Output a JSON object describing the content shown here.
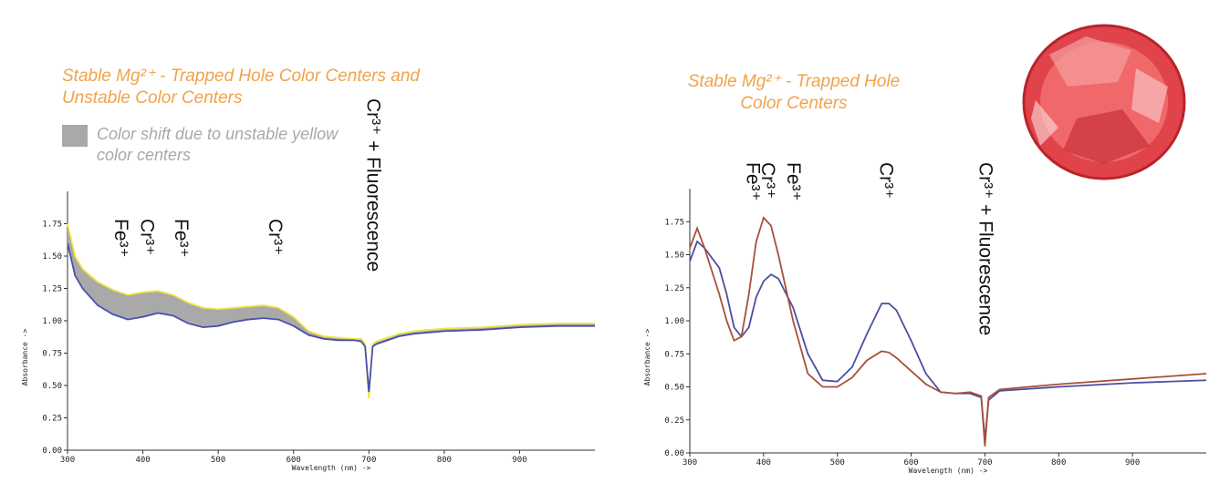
{
  "chart_data": [
    {
      "type": "line",
      "title": "Stable Mg²⁺ - Trapped Hole Color Centers and Unstable Color Centers",
      "x_label": "Wavelength (nm) ->",
      "y_label": "Absorbance ->",
      "band": {
        "label": "Color shift due to unstable yellow color centers",
        "color": "#a9a9a9"
      },
      "x": [
        300,
        310,
        320,
        340,
        360,
        380,
        400,
        420,
        440,
        460,
        480,
        500,
        520,
        540,
        560,
        580,
        600,
        620,
        640,
        660,
        680,
        690,
        695,
        700,
        705,
        710,
        720,
        740,
        760,
        800,
        850,
        900,
        950,
        1000
      ],
      "series": [
        {
          "color": "#f0e640",
          "values": [
            1.75,
            1.5,
            1.4,
            1.3,
            1.24,
            1.2,
            1.22,
            1.23,
            1.2,
            1.14,
            1.1,
            1.09,
            1.1,
            1.11,
            1.12,
            1.1,
            1.03,
            0.92,
            0.88,
            0.87,
            0.86,
            0.86,
            0.82,
            0.4,
            0.82,
            0.84,
            0.86,
            0.9,
            0.92,
            0.94,
            0.95,
            0.97,
            0.98,
            0.98
          ]
        },
        {
          "color": "#4a4fb0",
          "values": [
            1.6,
            1.35,
            1.25,
            1.12,
            1.05,
            1.01,
            1.03,
            1.06,
            1.04,
            0.98,
            0.95,
            0.96,
            0.99,
            1.01,
            1.02,
            1.01,
            0.96,
            0.89,
            0.86,
            0.85,
            0.85,
            0.84,
            0.8,
            0.45,
            0.8,
            0.82,
            0.84,
            0.88,
            0.9,
            0.92,
            0.93,
            0.95,
            0.96,
            0.96
          ]
        }
      ],
      "annotations": [
        {
          "text": "Fe³⁺",
          "x": 370
        },
        {
          "text": "Cr³⁺",
          "x": 405
        },
        {
          "text": "Fe³⁺",
          "x": 450
        },
        {
          "text": "Cr³⁺",
          "x": 575
        },
        {
          "text": "Cr³⁺ + Fluorescence",
          "x": 705
        }
      ],
      "xlim": [
        300,
        1000
      ],
      "ylim": [
        0,
        2
      ],
      "xticks": [
        300,
        400,
        500,
        600,
        700,
        800,
        900
      ],
      "yticks": [
        {
          "value": 0,
          "label": "0.00"
        },
        {
          "value": 0.25,
          "label": "0.25"
        },
        {
          "value": 0.5,
          "label": "0.50"
        },
        {
          "value": 0.75,
          "label": "0.75"
        },
        {
          "value": 1,
          "label": "1.00"
        },
        {
          "value": 1.25,
          "label": "1.25"
        },
        {
          "value": 1.5,
          "label": "1.50"
        },
        {
          "value": 1.75,
          "label": "1.75"
        }
      ]
    },
    {
      "type": "line",
      "title": "Stable Mg²⁺ - Trapped Hole Color Centers",
      "x_label": "Wavelength (nm) ->",
      "y_label": "Absorbance ->",
      "x": [
        300,
        310,
        320,
        340,
        350,
        360,
        370,
        380,
        390,
        400,
        410,
        420,
        440,
        460,
        480,
        500,
        520,
        540,
        560,
        570,
        580,
        600,
        620,
        640,
        660,
        680,
        695,
        700,
        705,
        720,
        800,
        900,
        1000
      ],
      "series": [
        {
          "color": "#4a4fa0",
          "values": [
            1.45,
            1.6,
            1.55,
            1.4,
            1.2,
            0.95,
            0.88,
            0.95,
            1.18,
            1.3,
            1.35,
            1.32,
            1.1,
            0.75,
            0.55,
            0.54,
            0.65,
            0.9,
            1.13,
            1.13,
            1.08,
            0.85,
            0.6,
            0.46,
            0.45,
            0.45,
            0.42,
            0.1,
            0.4,
            0.47,
            0.5,
            0.53,
            0.55
          ]
        },
        {
          "color": "#a9503a",
          "values": [
            1.55,
            1.7,
            1.55,
            1.2,
            1.0,
            0.85,
            0.88,
            1.2,
            1.6,
            1.78,
            1.72,
            1.5,
            1.0,
            0.6,
            0.5,
            0.5,
            0.57,
            0.7,
            0.77,
            0.76,
            0.72,
            0.62,
            0.52,
            0.46,
            0.45,
            0.46,
            0.43,
            0.05,
            0.42,
            0.48,
            0.52,
            0.56,
            0.6
          ]
        }
      ],
      "annotations": [
        {
          "text": "Fe³⁺",
          "x": 385
        },
        {
          "text": "Cr³⁺",
          "x": 405
        },
        {
          "text": "Fe³⁺",
          "x": 440
        },
        {
          "text": "Cr³⁺",
          "x": 565
        },
        {
          "text": "Cr³⁺ + Fluorescence",
          "x": 700
        }
      ],
      "xlim": [
        300,
        1000
      ],
      "ylim": [
        0,
        2
      ],
      "xticks": [
        300,
        400,
        500,
        600,
        700,
        800,
        900
      ],
      "yticks": [
        {
          "value": 0,
          "label": "0.00"
        },
        {
          "value": 0.25,
          "label": "0.25"
        },
        {
          "value": 0.5,
          "label": "0.50"
        },
        {
          "value": 0.75,
          "label": "0.75"
        },
        {
          "value": 1,
          "label": "1.00"
        },
        {
          "value": 1.25,
          "label": "1.25"
        },
        {
          "value": 1.5,
          "label": "1.50"
        },
        {
          "value": 1.75,
          "label": "1.75"
        }
      ]
    }
  ]
}
